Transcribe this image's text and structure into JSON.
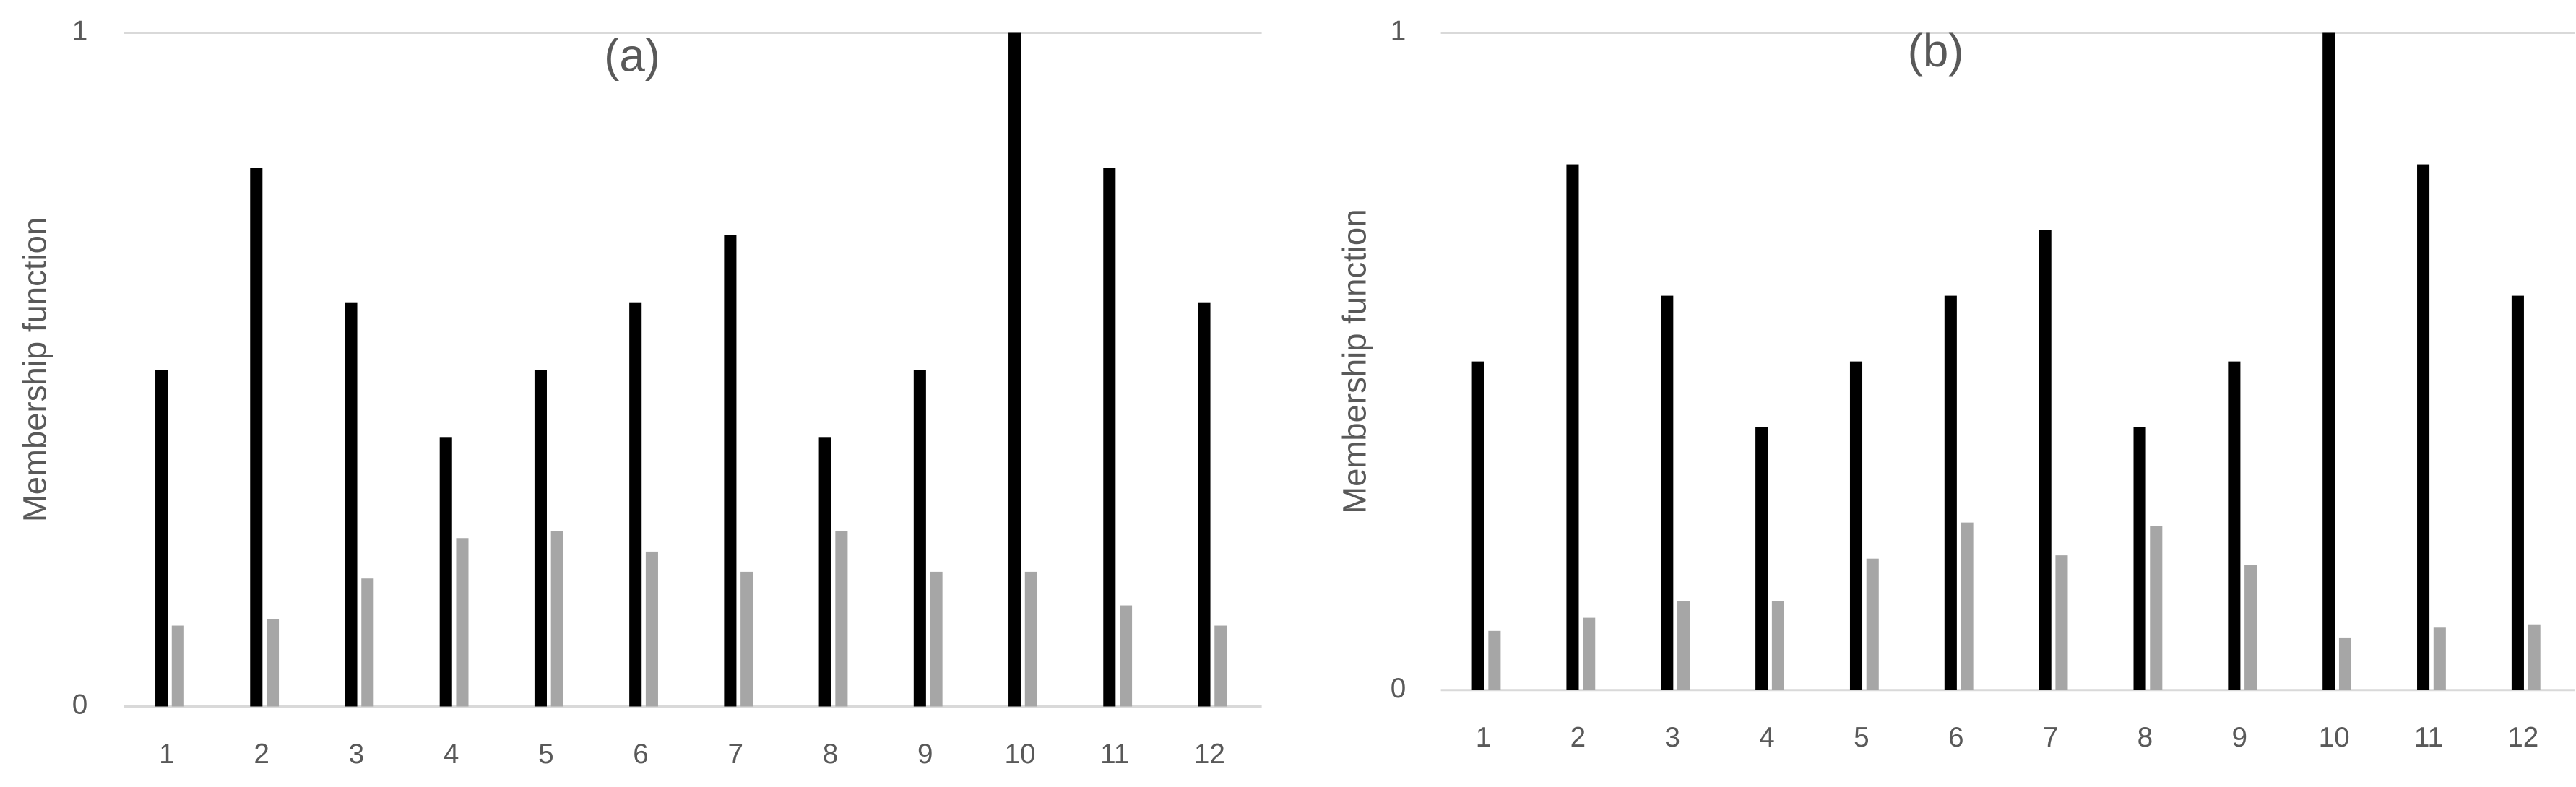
{
  "chart_data": [
    {
      "type": "bar",
      "title": "(a)",
      "y_label": "Membership function",
      "categories": [
        "1",
        "2",
        "3",
        "4",
        "5",
        "6",
        "7",
        "8",
        "9",
        "10",
        "11",
        "12"
      ],
      "series": [
        {
          "color": "#000000",
          "values": [
            0.5,
            0.8,
            0.6,
            0.4,
            0.5,
            0.6,
            0.7,
            0.4,
            0.5,
            1,
            0.8,
            0.6
          ]
        },
        {
          "color": "#a6a6a6",
          "values": [
            0.12,
            0.13,
            0.19,
            0.25,
            0.26,
            0.23,
            0.2,
            0.26,
            0.2,
            0.2,
            0.15,
            0.12
          ]
        }
      ],
      "ylim": [
        0,
        1
      ],
      "yticks": [
        0,
        1
      ],
      "grid": true
    },
    {
      "type": "bar",
      "title": "(b)",
      "y_label": "Membership function",
      "categories": [
        "1",
        "2",
        "3",
        "4",
        "5",
        "6",
        "7",
        "8",
        "9",
        "10",
        "11",
        "12"
      ],
      "series": [
        {
          "color": "#000000",
          "values": [
            0.5,
            0.8,
            0.6,
            0.4,
            0.5,
            0.6,
            0.7,
            0.4,
            0.5,
            1,
            0.8,
            0.6
          ]
        },
        {
          "color": "#a6a6a6",
          "values": [
            0.09,
            0.11,
            0.135,
            0.135,
            0.2,
            0.255,
            0.205,
            0.25,
            0.19,
            0.08,
            0.095,
            0.1
          ]
        }
      ],
      "ylim": [
        0,
        1
      ],
      "yticks": [
        0,
        1
      ],
      "grid": true
    }
  ]
}
